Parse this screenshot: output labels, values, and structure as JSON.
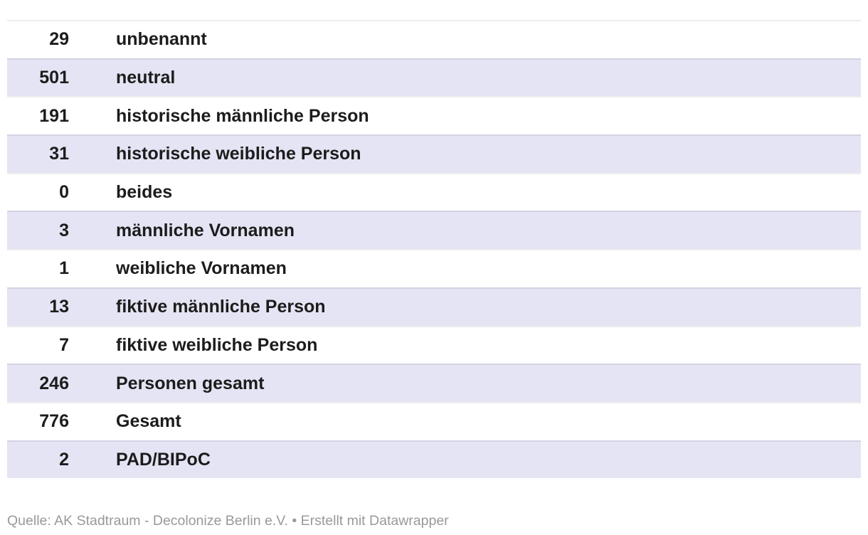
{
  "chart_data": {
    "type": "table",
    "rows": [
      {
        "value": "29",
        "label": "unbenannt"
      },
      {
        "value": "501",
        "label": "neutral"
      },
      {
        "value": "191",
        "label": "historische männliche Person"
      },
      {
        "value": "31",
        "label": "historische weibliche Person"
      },
      {
        "value": "0",
        "label": "beides"
      },
      {
        "value": "3",
        "label": "männliche Vornamen"
      },
      {
        "value": "1",
        "label": "weibliche Vornamen"
      },
      {
        "value": "13",
        "label": "fiktive männliche Person"
      },
      {
        "value": "7",
        "label": "fiktive weibliche Person"
      },
      {
        "value": "246",
        "label": "Personen gesamt"
      },
      {
        "value": "776",
        "label": "Gesamt"
      },
      {
        "value": "2",
        "label": "PAD/BIPoC"
      }
    ],
    "layout": {
      "header_row": false,
      "zebra_striping": true,
      "value_column_align": "right"
    }
  },
  "footer": {
    "source_prefix": "Quelle: ",
    "source": "AK Stadtraum - Decolonize Berlin e.V.",
    "separator": " • ",
    "attribution_prefix": "Erstellt mit ",
    "attribution_brand": "Datawrapper"
  },
  "colors": {
    "row_stripe": "#e4e4f4",
    "row_plain": "#ffffff",
    "cell_text": "#1c1c1c",
    "footer_text": "#999999"
  }
}
